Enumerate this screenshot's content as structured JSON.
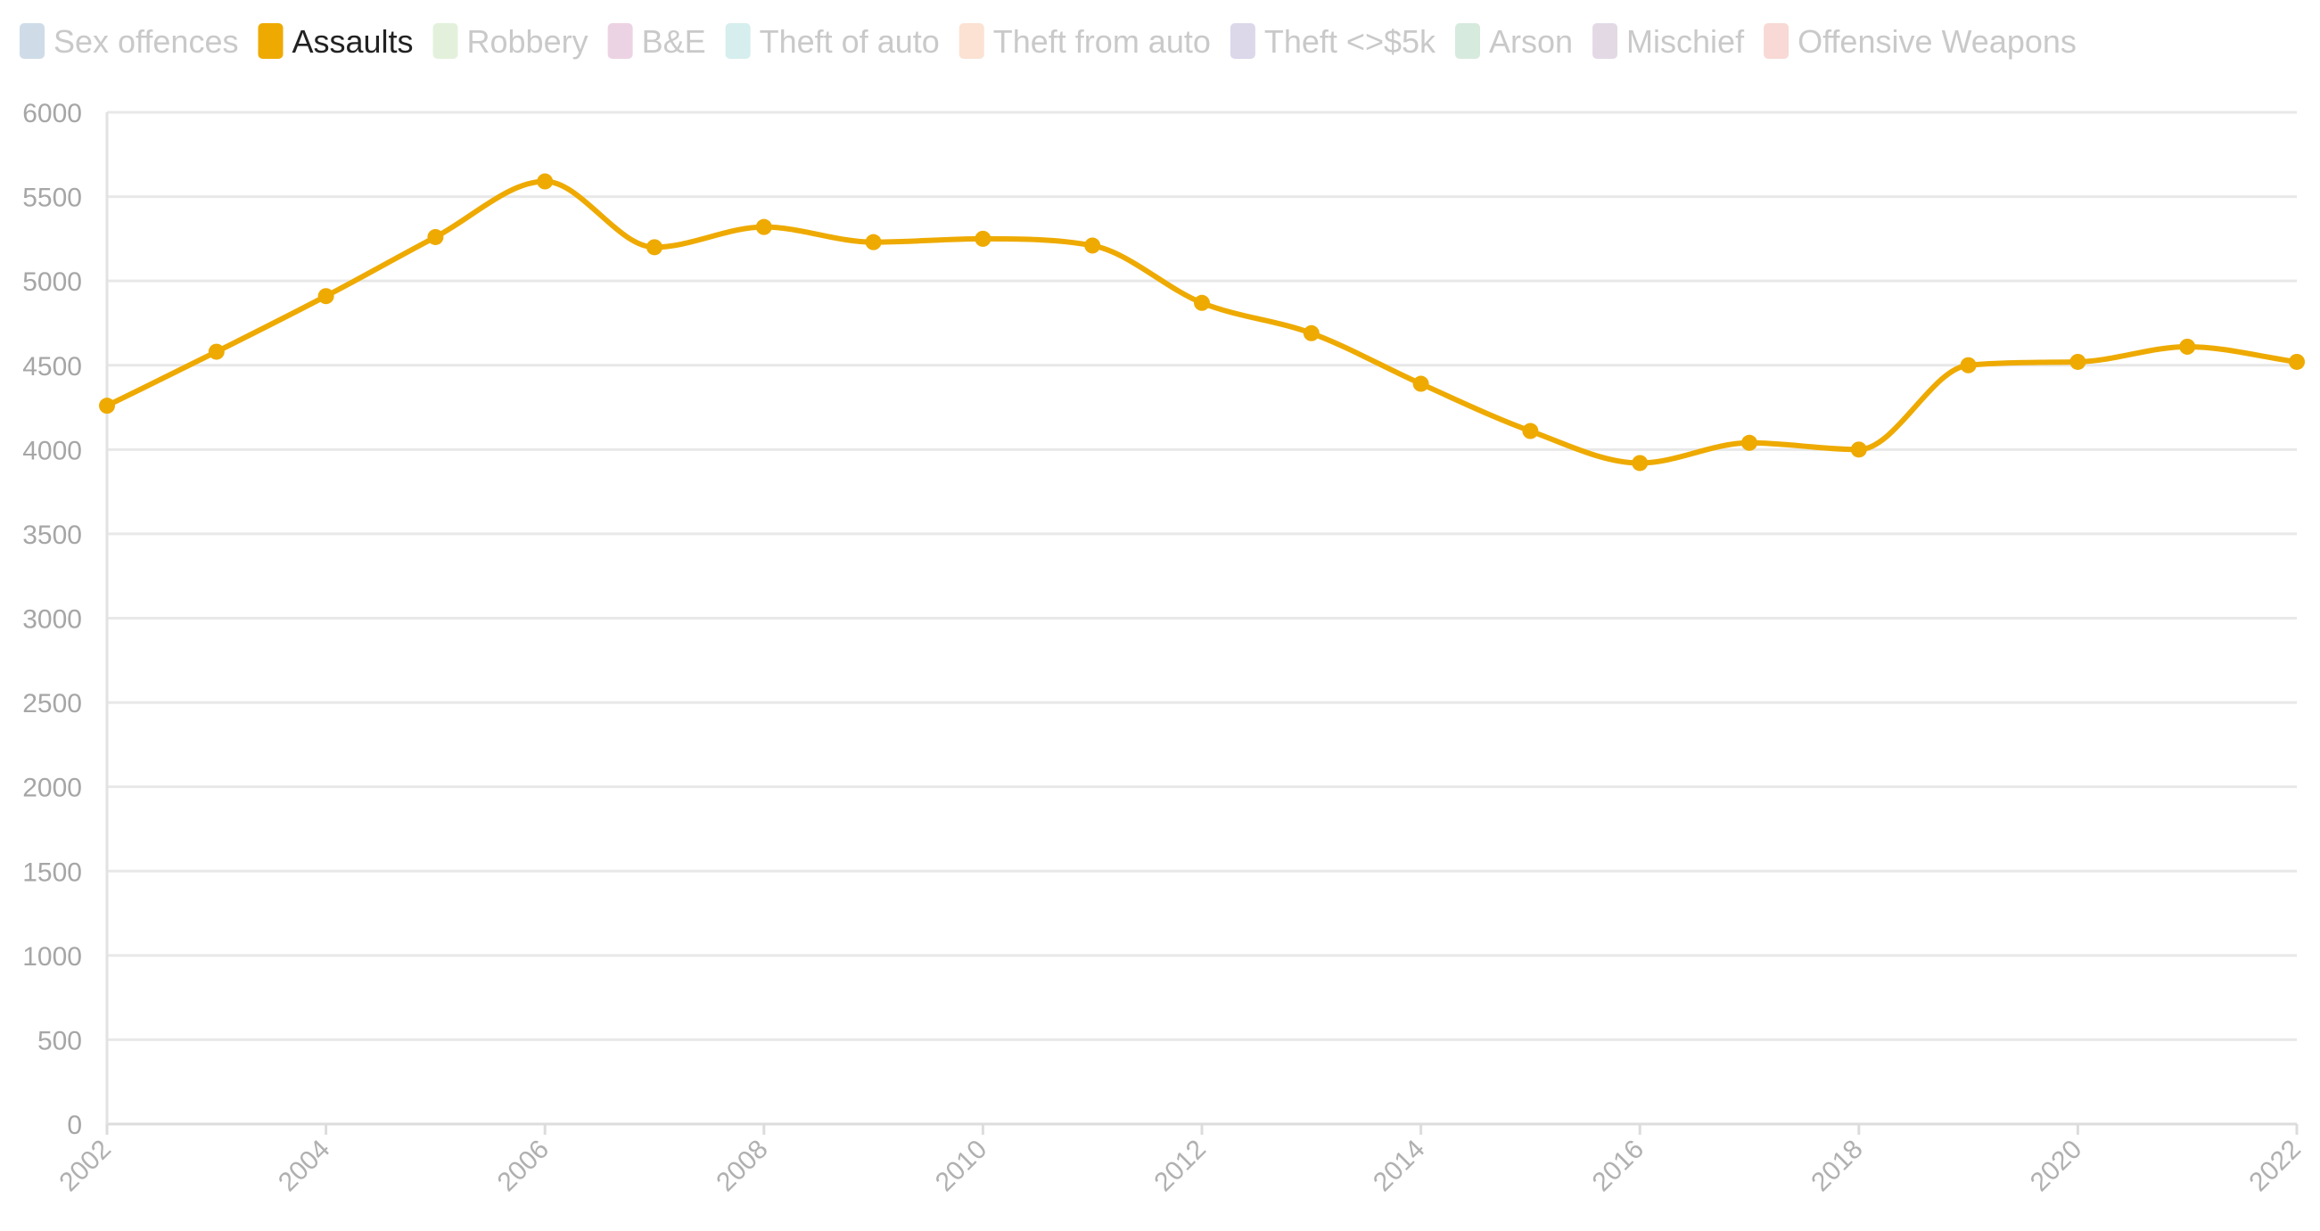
{
  "chart_data": {
    "type": "line",
    "title": "",
    "xlabel": "",
    "ylabel": "",
    "legend_position": "top-left",
    "grid": true,
    "smooth": true,
    "x": [
      2002,
      2003,
      2004,
      2005,
      2006,
      2007,
      2008,
      2009,
      2010,
      2011,
      2012,
      2013,
      2014,
      2015,
      2016,
      2017,
      2018,
      2019,
      2020,
      2021,
      2022
    ],
    "xticks": [
      "2002",
      "2004",
      "2006",
      "2008",
      "2010",
      "2012",
      "2014",
      "2016",
      "2018",
      "2020",
      "2022"
    ],
    "ylim": [
      0,
      6000
    ],
    "yticks": [
      "0",
      "500",
      "1000",
      "1500",
      "2000",
      "2500",
      "3000",
      "3500",
      "4000",
      "4500",
      "5000",
      "5500",
      "6000"
    ],
    "legend": [
      {
        "name": "Sex offences",
        "color": "#cfdce8",
        "active": false
      },
      {
        "name": "Assaults",
        "color": "#eeaa00",
        "active": true
      },
      {
        "name": "Robbery",
        "color": "#e3f1dc",
        "active": false
      },
      {
        "name": "B&E",
        "color": "#ecd3e3",
        "active": false
      },
      {
        "name": "Theft of auto",
        "color": "#d6eeee",
        "active": false
      },
      {
        "name": "Theft from auto",
        "color": "#fbe2d3",
        "active": false
      },
      {
        "name": "Theft <>$5k",
        "color": "#dcd8ea",
        "active": false
      },
      {
        "name": "Arson",
        "color": "#d6eadd",
        "active": false
      },
      {
        "name": "Mischief",
        "color": "#e3d9e5",
        "active": false
      },
      {
        "name": "Offensive Weapons",
        "color": "#f8d9d5",
        "active": false
      }
    ],
    "series": [
      {
        "name": "Assaults",
        "color": "#eeaa00",
        "values": [
          4260,
          4580,
          4910,
          5260,
          5590,
          5200,
          5320,
          5230,
          5250,
          5210,
          4870,
          4690,
          4390,
          4110,
          3920,
          4040,
          4000,
          4500,
          4520,
          4610,
          4520
        ]
      }
    ]
  }
}
